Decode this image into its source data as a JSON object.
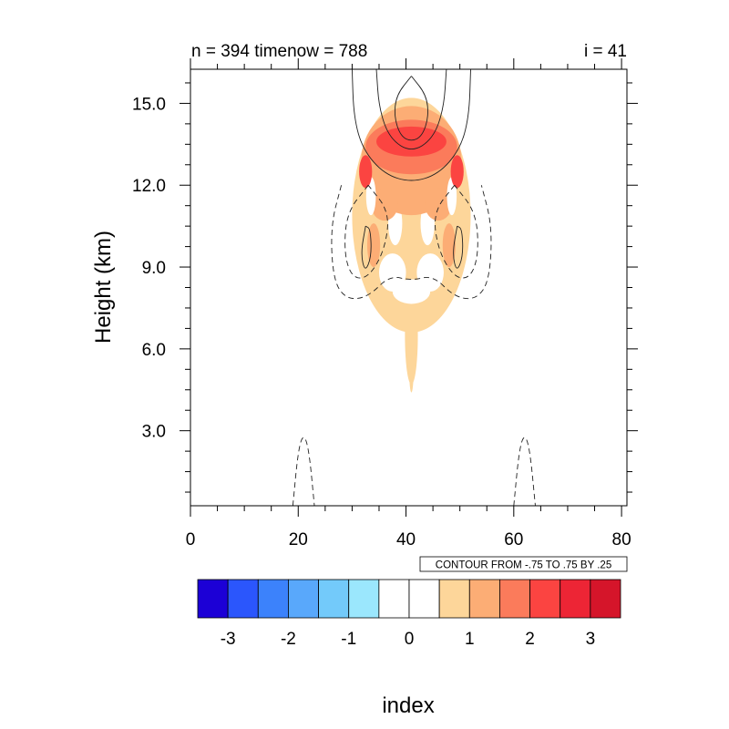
{
  "chart_data": {
    "type": "heatmap",
    "title_left": "n = 394 timenow = 788",
    "title_right": "i = 41",
    "xlabel": "index",
    "ylabel": "Height (km)",
    "xlim": [
      0,
      81
    ],
    "ylim": [
      0.25,
      16.25
    ],
    "x_ticks": [
      0,
      20,
      40,
      60,
      80
    ],
    "x_tick_labels": [
      "0",
      "20",
      "40",
      "60",
      "80"
    ],
    "y_ticks": [
      3,
      6,
      9,
      12,
      15
    ],
    "y_tick_labels": [
      "3.0",
      "6.0",
      "9.0",
      "12.0",
      "15.0"
    ],
    "contour_info": "CONTOUR FROM -.75 TO .75 BY .25",
    "colorbar": {
      "bounds": [
        -3.5,
        -3,
        -2.5,
        -2,
        -1.5,
        -1,
        -0.5,
        0,
        0.5,
        1,
        1.5,
        2,
        2.5,
        3,
        3.5
      ],
      "colors": [
        "#1c00d6",
        "#2b56fc",
        "#3c82fb",
        "#59a8fb",
        "#73cafa",
        "#9be7fd",
        "#ffffff",
        "#ffffff",
        "#fdd69a",
        "#fcad75",
        "#fb7b5b",
        "#fb4441",
        "#ed2535",
        "#d5152a"
      ],
      "tick_values": [
        -3,
        -2,
        -1,
        0,
        1,
        2,
        3
      ],
      "tick_labels": [
        "-3",
        "-2",
        "-1",
        "0",
        "1",
        "2",
        "3"
      ]
    },
    "filled_regions": [
      {
        "level": 1,
        "shape": "ellipse",
        "cx": 41,
        "cy": 10.9,
        "rx": 11,
        "ry": 4.3
      },
      {
        "level": 1,
        "shape": "ellipse",
        "cx": 41,
        "cy": 6.5,
        "rx": 1.2,
        "ry": 1.8
      },
      {
        "level": 1,
        "shape": "ellipse",
        "cx": 41,
        "cy": 5.2,
        "rx": 0.4,
        "ry": 0.8
      },
      {
        "level": 0,
        "shape": "ellipse",
        "cx": 41,
        "cy": 8.1,
        "rx": 3.5,
        "ry": 0.45
      },
      {
        "level": 0,
        "shape": "ellipse",
        "cx": 37.5,
        "cy": 8.8,
        "rx": 2.5,
        "ry": 0.7
      },
      {
        "level": 0,
        "shape": "ellipse",
        "cx": 44.5,
        "cy": 8.8,
        "rx": 2.5,
        "ry": 0.7
      },
      {
        "level": 0,
        "shape": "ellipse",
        "cx": 38,
        "cy": 10.6,
        "rx": 1.3,
        "ry": 0.8
      },
      {
        "level": 0,
        "shape": "ellipse",
        "cx": 44,
        "cy": 10.6,
        "rx": 1.3,
        "ry": 0.8
      },
      {
        "level": 1,
        "shape": "ellipse",
        "cx": 41,
        "cy": 9.0,
        "rx": 0.7,
        "ry": 0.3
      },
      {
        "level": 2,
        "shape": "ellipse",
        "cx": 41,
        "cy": 12.9,
        "rx": 9.3,
        "ry": 2.0
      },
      {
        "level": 2,
        "shape": "ellipse",
        "cx": 36,
        "cy": 11.3,
        "rx": 2.5,
        "ry": 0.6
      },
      {
        "level": 2,
        "shape": "ellipse",
        "cx": 46,
        "cy": 11.3,
        "rx": 2.5,
        "ry": 0.6
      },
      {
        "level": 2,
        "shape": "ellipse",
        "cx": 34,
        "cy": 9.8,
        "rx": 1.2,
        "ry": 0.8
      },
      {
        "level": 2,
        "shape": "ellipse",
        "cx": 48,
        "cy": 9.8,
        "rx": 1.2,
        "ry": 0.8
      },
      {
        "level": 0,
        "shape": "ellipse",
        "cx": 33.5,
        "cy": 11.6,
        "rx": 0.9,
        "ry": 0.7
      },
      {
        "level": 0,
        "shape": "ellipse",
        "cx": 48.5,
        "cy": 11.6,
        "rx": 0.9,
        "ry": 0.7
      },
      {
        "level": 3,
        "shape": "ellipse",
        "cx": 41,
        "cy": 13.4,
        "rx": 8.5,
        "ry": 1.0
      },
      {
        "level": 4,
        "shape": "ellipse",
        "cx": 41,
        "cy": 13.6,
        "rx": 6.5,
        "ry": 0.55
      },
      {
        "level": 4,
        "shape": "ellipse",
        "cx": 32.5,
        "cy": 12.5,
        "rx": 1.2,
        "ry": 0.6
      },
      {
        "level": 4,
        "shape": "ellipse",
        "cx": 49.5,
        "cy": 12.5,
        "rx": 1.2,
        "ry": 0.6
      }
    ],
    "contour_lines": [
      {
        "style": "solid",
        "points": [
          [
            30,
            16.25
          ],
          [
            30.3,
            14.5
          ],
          [
            32,
            13.3
          ],
          [
            36,
            12.4
          ],
          [
            41,
            12.1
          ],
          [
            46,
            12.4
          ],
          [
            50,
            13.3
          ],
          [
            51.7,
            14.5
          ],
          [
            52,
            16.25
          ]
        ]
      },
      {
        "style": "solid",
        "points": [
          [
            34.5,
            16.25
          ],
          [
            35,
            14.8
          ],
          [
            37,
            13.7
          ],
          [
            41,
            13.2
          ],
          [
            45,
            13.7
          ],
          [
            47,
            14.8
          ],
          [
            47.5,
            16.25
          ]
        ]
      },
      {
        "style": "solid",
        "points": [
          [
            41,
            16
          ],
          [
            38.2,
            15.3
          ],
          [
            37.8,
            14.5
          ],
          [
            39,
            13.8
          ],
          [
            41,
            13.6
          ],
          [
            43,
            13.8
          ],
          [
            44.2,
            14.5
          ],
          [
            43.8,
            15.3
          ],
          [
            41,
            16
          ]
        ]
      },
      {
        "style": "dashed",
        "points": [
          [
            28,
            12
          ],
          [
            26,
            10.5
          ],
          [
            26.5,
            8.5
          ],
          [
            29,
            7.8
          ],
          [
            33,
            7.9
          ],
          [
            37,
            8.7
          ],
          [
            41,
            8.5
          ],
          [
            45,
            8.7
          ],
          [
            49,
            7.9
          ],
          [
            53,
            7.8
          ],
          [
            55.5,
            8.5
          ],
          [
            56,
            10.5
          ],
          [
            54,
            12
          ]
        ]
      },
      {
        "style": "dashed",
        "points": [
          [
            33,
            12
          ],
          [
            29,
            11
          ],
          [
            28.5,
            9.5
          ],
          [
            30,
            8.6
          ],
          [
            33,
            8.6
          ],
          [
            36,
            9.6
          ],
          [
            37,
            11
          ],
          [
            33,
            12
          ]
        ]
      },
      {
        "style": "dashed",
        "points": [
          [
            49,
            12
          ],
          [
            45,
            11
          ],
          [
            46,
            9.6
          ],
          [
            49,
            8.6
          ],
          [
            52,
            8.6
          ],
          [
            53.5,
            9.5
          ],
          [
            53,
            11
          ],
          [
            49,
            12
          ]
        ]
      },
      {
        "style": "solid",
        "points": [
          [
            32.5,
            10.5
          ],
          [
            31.6,
            9.5
          ],
          [
            32.4,
            8.8
          ],
          [
            33.6,
            9.4
          ],
          [
            33.4,
            10.4
          ],
          [
            32.5,
            10.5
          ]
        ]
      },
      {
        "style": "solid",
        "points": [
          [
            49.5,
            10.5
          ],
          [
            48.6,
            9.5
          ],
          [
            49.4,
            8.8
          ],
          [
            50.6,
            9.4
          ],
          [
            50.4,
            10.4
          ],
          [
            49.5,
            10.5
          ]
        ]
      },
      {
        "style": "dashed",
        "points": [
          [
            19,
            0.25
          ],
          [
            20,
            2.3
          ],
          [
            21,
            2.9
          ],
          [
            22,
            2.3
          ],
          [
            23,
            0.25
          ]
        ]
      },
      {
        "style": "dashed",
        "points": [
          [
            60,
            0.25
          ],
          [
            61,
            2.3
          ],
          [
            62,
            2.9
          ],
          [
            63,
            2.3
          ],
          [
            64,
            0.25
          ]
        ]
      }
    ]
  }
}
